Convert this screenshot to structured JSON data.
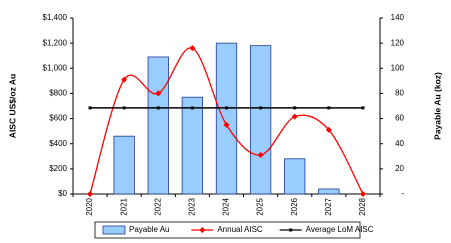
{
  "chart_data": {
    "type": "bar-line",
    "categories": [
      "2020",
      "2021",
      "2022",
      "2023",
      "2024",
      "2025",
      "2026",
      "2027",
      "2028"
    ],
    "y_label": "AISC US$/oz Au",
    "y2_label": "Payable Au (koz)",
    "ylim": [
      0,
      1400
    ],
    "yticks": [
      {
        "value": 0,
        "label": "$0"
      },
      {
        "value": 200,
        "label": "$200"
      },
      {
        "value": 400,
        "label": "$400"
      },
      {
        "value": 600,
        "label": "$600"
      },
      {
        "value": 800,
        "label": "$800"
      },
      {
        "value": 1000,
        "label": "$1,000"
      },
      {
        "value": 1200,
        "label": "$1,200"
      },
      {
        "value": 1400,
        "label": "$1,400"
      }
    ],
    "y2lim": [
      0,
      140
    ],
    "y2ticks": [
      {
        "value": 0,
        "label": "-"
      },
      20,
      40,
      60,
      80,
      100,
      120,
      140
    ],
    "legend": "bottom",
    "series": [
      {
        "name": "Payable Au",
        "type": "bar",
        "axis": "y2",
        "color": "#99ccff",
        "values": [
          0,
          46,
          109,
          77,
          120,
          118,
          28,
          4,
          0
        ]
      },
      {
        "name": "Annual AISC",
        "type": "line",
        "smooth": true,
        "color": "#ff0000",
        "values": [
          0,
          910,
          800,
          1160,
          550,
          310,
          615,
          510,
          0
        ]
      },
      {
        "name": "Average LoM AISC",
        "type": "line",
        "color": "#000000",
        "values": [
          685,
          685,
          685,
          685,
          685,
          685,
          685,
          685,
          685
        ]
      }
    ]
  }
}
